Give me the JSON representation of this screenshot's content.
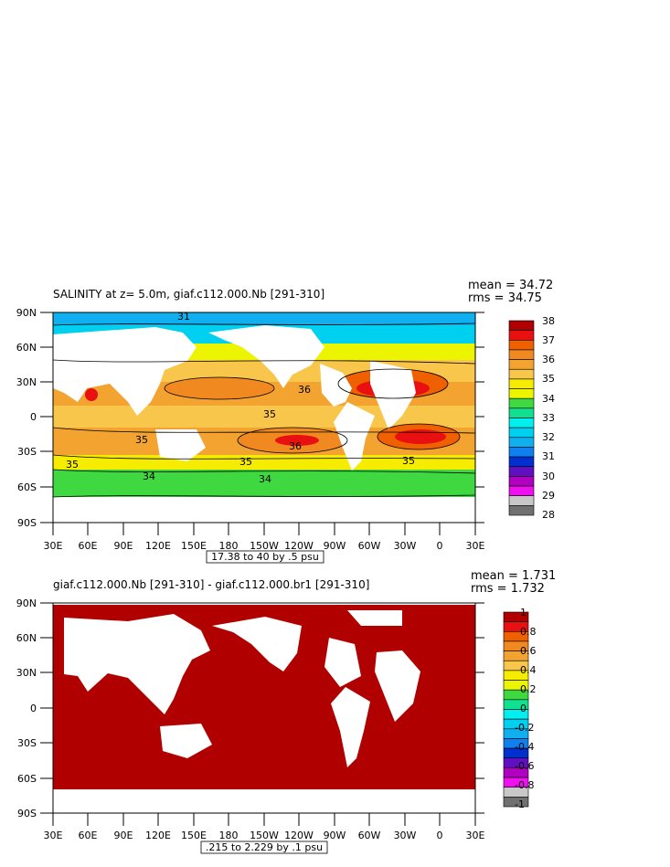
{
  "panels": [
    {
      "title": "SALINITY at z=    5.0m, giaf.c112.000.Nb [291-310]",
      "mean": "mean = 34.72",
      "rms": "rms = 34.75",
      "range_note": "17.38 to 40 by .5 psu",
      "y_ticks": [
        "90N",
        "60N",
        "30N",
        "0",
        "30S",
        "60S",
        "90S"
      ],
      "x_ticks": [
        "30E",
        "60E",
        "90E",
        "120E",
        "150E",
        "180",
        "150W",
        "120W",
        "90W",
        "60W",
        "30W",
        "0",
        "30E"
      ],
      "colorbar_labels": [
        "38",
        "37",
        "36",
        "35",
        "34",
        "33",
        "32",
        "31",
        "30",
        "29",
        "28"
      ],
      "colorbar_colors": [
        "#b00000",
        "#e81010",
        "#ee6000",
        "#f08a20",
        "#f2a330",
        "#f7c64a",
        "#f6ec00",
        "#ecf400",
        "#40d840",
        "#10e090",
        "#00f0f0",
        "#00d0f0",
        "#10b0f0",
        "#1080f0",
        "#0030d0",
        "#6010c0",
        "#b000c0",
        "#ef10ef",
        "#c8c8c8",
        "#707070"
      ],
      "contour_labels": [
        "31",
        "35",
        "35",
        "36",
        "35",
        "35",
        "36",
        "34",
        "34",
        "35"
      ]
    },
    {
      "title": "giaf.c112.000.Nb [291-310] - giaf.c112.000.br1 [291-310]",
      "mean": "mean = 1.731",
      "rms": "rms = 1.732",
      "range_note": ".215 to 2.229 by .1 psu",
      "y_ticks": [
        "90N",
        "60N",
        "30N",
        "0",
        "30S",
        "60S",
        "90S"
      ],
      "x_ticks": [
        "30E",
        "60E",
        "90E",
        "120E",
        "150E",
        "180",
        "150W",
        "120W",
        "90W",
        "60W",
        "30W",
        "0",
        "30E"
      ],
      "colorbar_labels": [
        "1",
        "0.8",
        "0.6",
        "0.4",
        "0.2",
        "0",
        "-0.2",
        "-0.4",
        "-0.6",
        "-0.8",
        "-1"
      ],
      "colorbar_colors": [
        "#b00000",
        "#e81010",
        "#ee6000",
        "#f08a20",
        "#f2a330",
        "#f7c64a",
        "#f6ec00",
        "#ecf400",
        "#40d840",
        "#10e090",
        "#00f0f0",
        "#00d0f0",
        "#10b0f0",
        "#1080f0",
        "#0030d0",
        "#6010c0",
        "#b000c0",
        "#ef10ef",
        "#c8c8c8",
        "#707070"
      ],
      "field_color": "#b00000"
    }
  ]
}
